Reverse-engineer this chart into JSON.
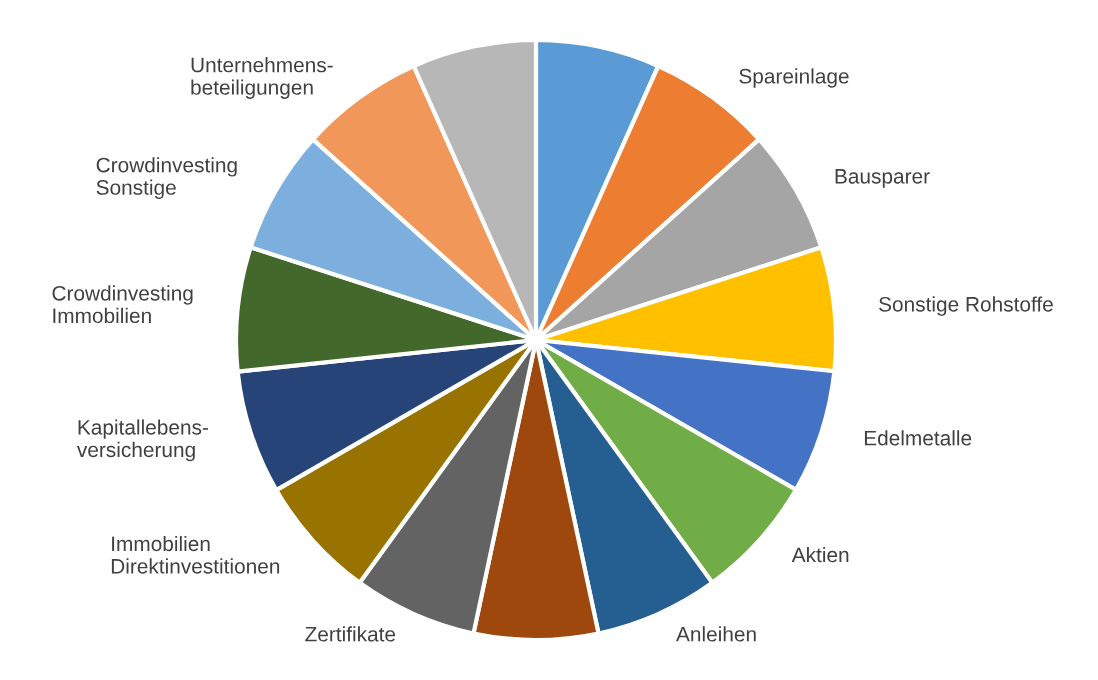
{
  "chart_data": {
    "type": "pie",
    "categories": [
      null,
      "Spareinlage",
      "Bausparer",
      "Sonstige Rohstoffe",
      "Edelmetalle",
      "Aktien",
      "Anleihen",
      null,
      "Zertifikate",
      "Immobilien\nDirektinvestitionen",
      "Kapitallebens-\nversicherung",
      "Crowdinvesting\nImmobilien",
      "Crowdinvesting\nSonstige",
      "Unternehmens-\nbeteiligungen",
      null
    ],
    "values": [
      6.68,
      6.66,
      6.66,
      6.66,
      6.66,
      6.68,
      6.66,
      6.68,
      6.66,
      6.66,
      6.66,
      6.68,
      6.66,
      6.66,
      6.68
    ],
    "colors": [
      "#5b9bd5",
      "#ed7d31",
      "#a5a5a5",
      "#ffc000",
      "#4472c4",
      "#70ad47",
      "#255e91",
      "#9e480e",
      "#636363",
      "#997300",
      "#264478",
      "#43682b",
      "#7cafdd",
      "#f1975a",
      "#b7b7b7"
    ],
    "legend": false
  }
}
